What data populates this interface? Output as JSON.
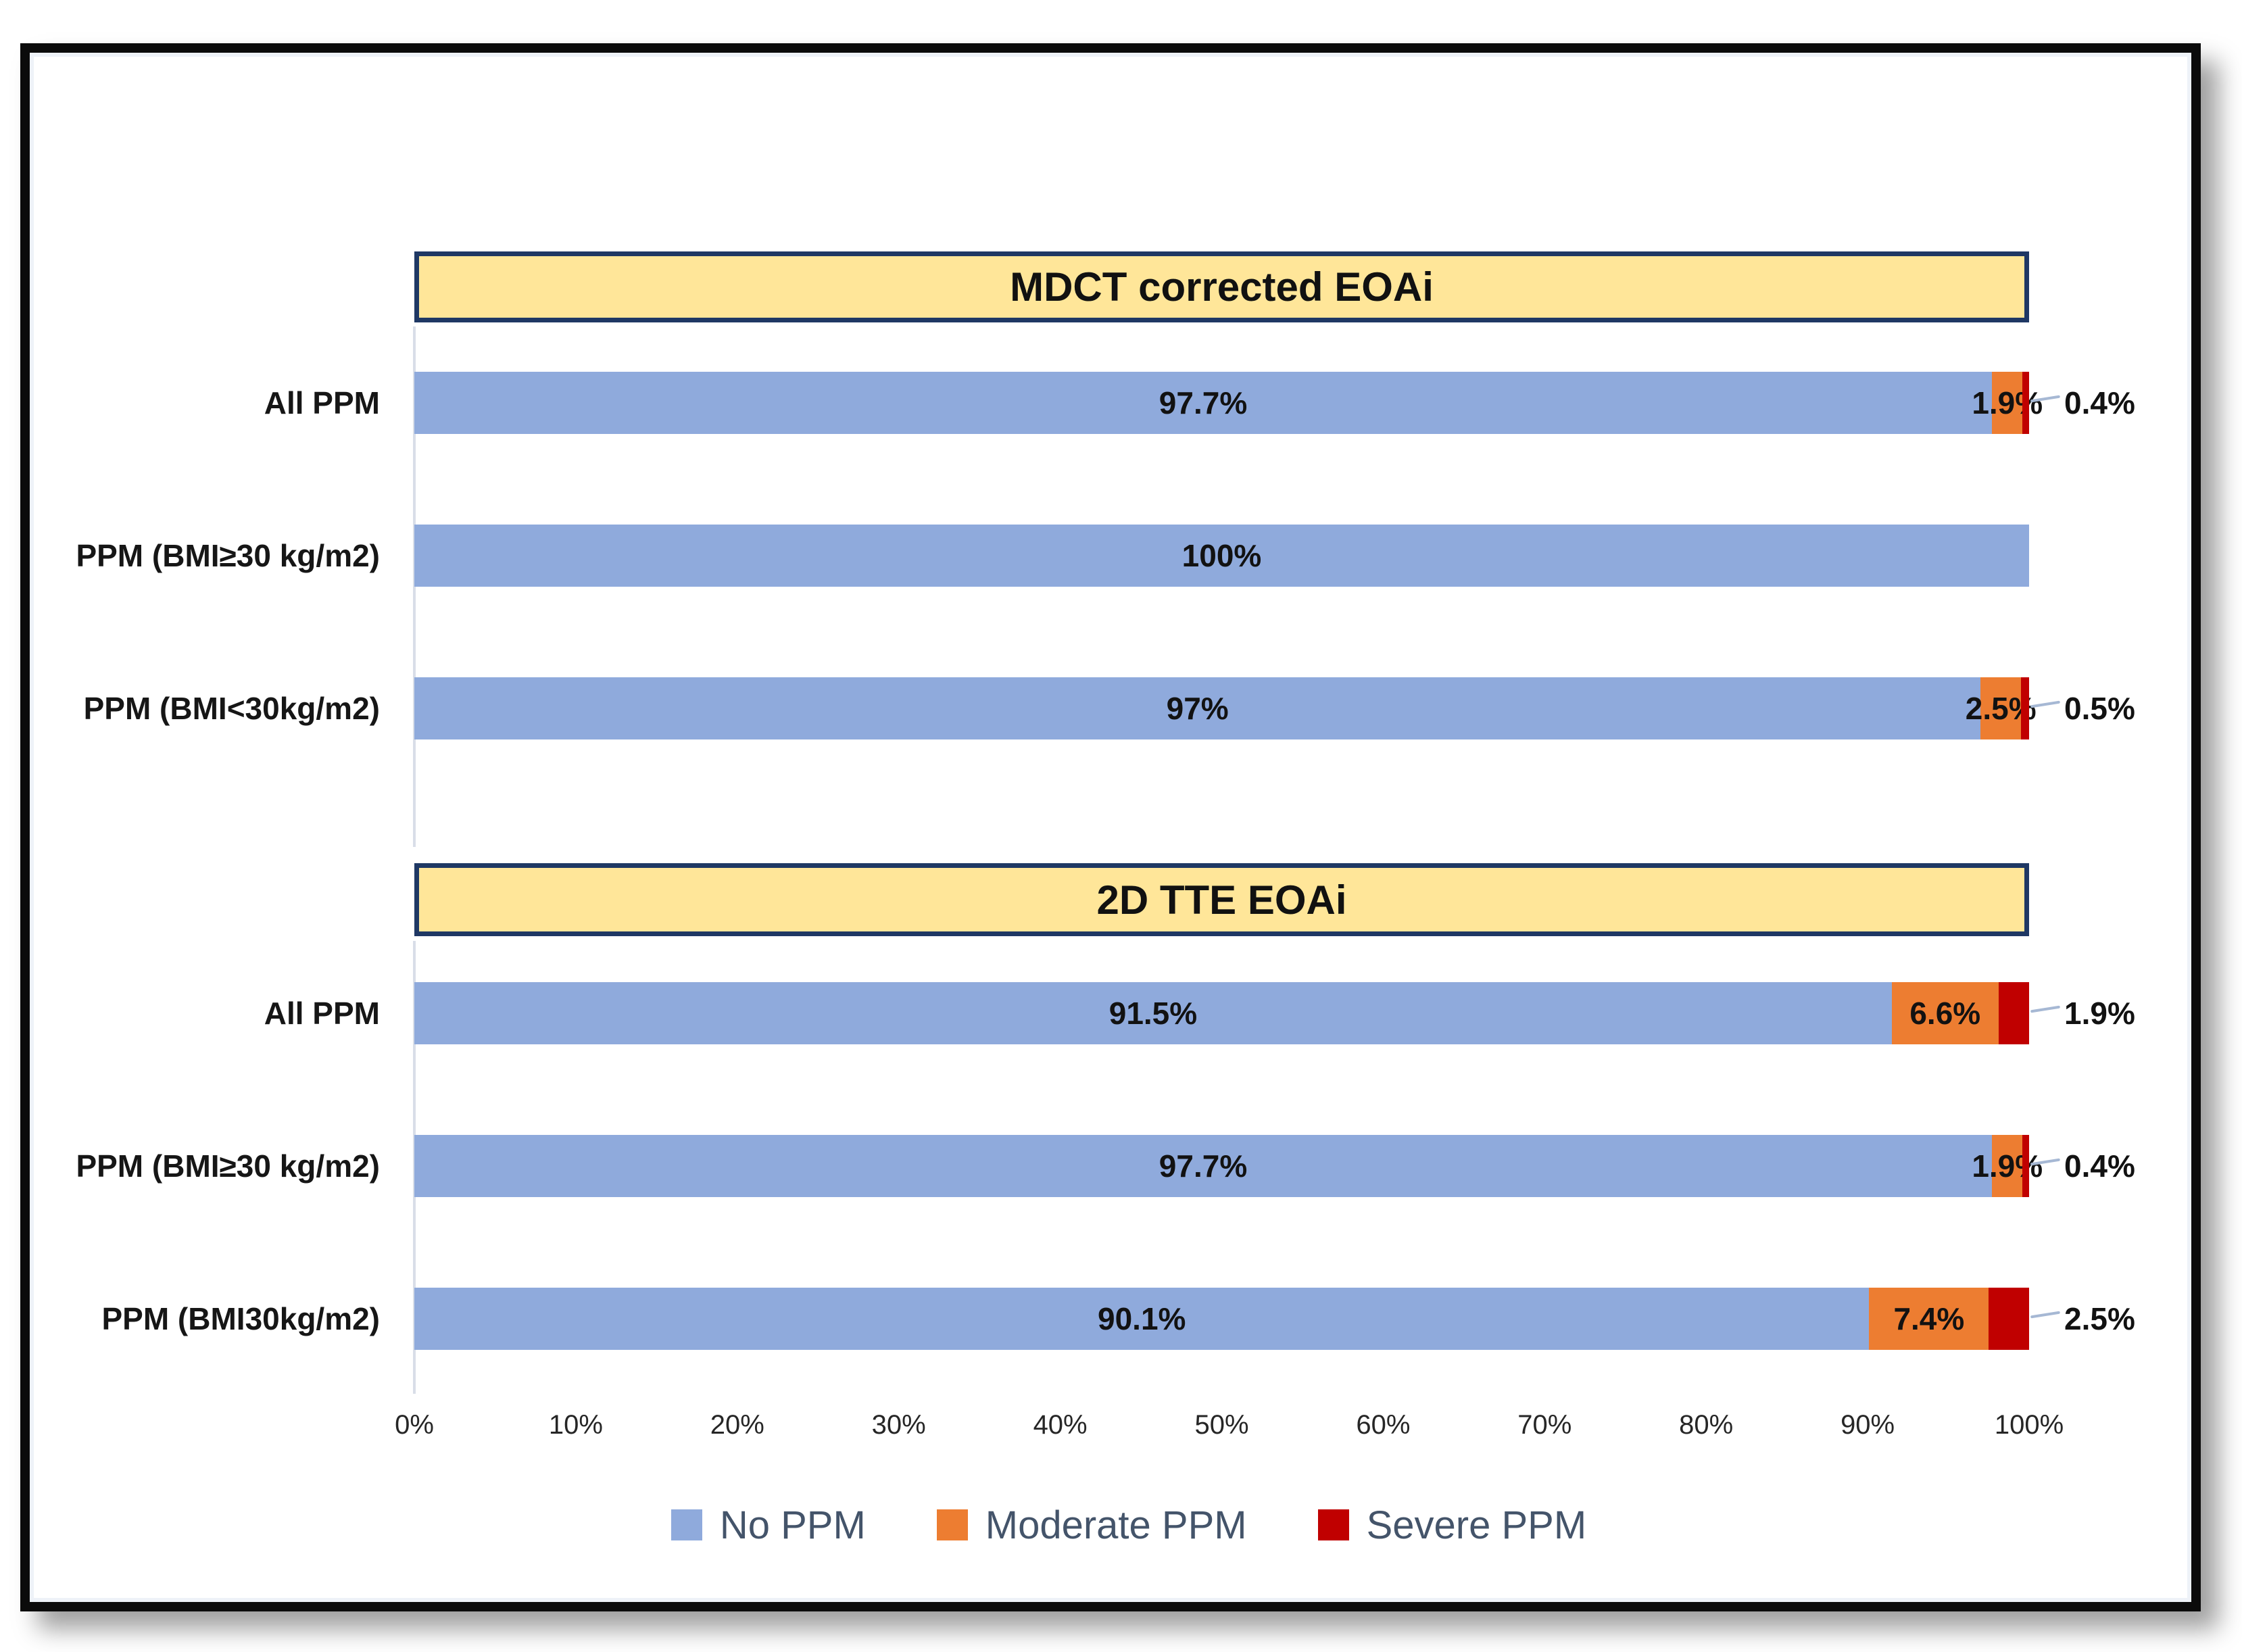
{
  "chart_data": [
    {
      "type": "bar",
      "orientation": "horizontal",
      "stacked": true,
      "title": "MDCT corrected EOAi",
      "categories": [
        "All PPM",
        "PPM (BMI≥30 kg/m2)",
        "PPM (BMI<30kg/m2)"
      ],
      "series": [
        {
          "name": "No PPM",
          "color": "#8FAADC",
          "values": [
            97.7,
            100,
            97
          ],
          "labels": [
            "97.7%",
            "100%",
            "97%"
          ]
        },
        {
          "name": "Moderate PPM",
          "color": "#ED7D31",
          "values": [
            1.9,
            0,
            2.5
          ],
          "labels": [
            "1.9%",
            "",
            "2.5%"
          ]
        },
        {
          "name": "Severe PPM",
          "color": "#C00000",
          "values": [
            0.4,
            0,
            0.5
          ],
          "labels": [
            "0.4%",
            "",
            "0.5%"
          ],
          "labels_outside": true
        }
      ],
      "xlim": [
        0,
        100
      ],
      "grid": false,
      "title_fill": "#FFE699",
      "title_border": "#1F3864"
    },
    {
      "type": "bar",
      "orientation": "horizontal",
      "stacked": true,
      "title": "2D TTE EOAi",
      "categories": [
        "All PPM",
        "PPM (BMI≥30 kg/m2)",
        "PPM (BMI30kg/m2)"
      ],
      "series": [
        {
          "name": "No PPM",
          "color": "#8FAADC",
          "values": [
            91.5,
            97.7,
            90.1
          ],
          "labels": [
            "91.5%",
            "97.7%",
            "90.1%"
          ]
        },
        {
          "name": "Moderate PPM",
          "color": "#ED7D31",
          "values": [
            6.6,
            1.9,
            7.4
          ],
          "labels": [
            "6.6%",
            "1.9%",
            "7.4%"
          ]
        },
        {
          "name": "Severe PPM",
          "color": "#C00000",
          "values": [
            1.9,
            0.4,
            2.5
          ],
          "labels": [
            "1.9%",
            "0.4%",
            "2.5%"
          ],
          "labels_outside": true
        }
      ],
      "xlim": [
        0,
        100
      ],
      "grid": false,
      "title_fill": "#FFE699",
      "title_border": "#1F3864"
    }
  ],
  "axis": {
    "tick_labels": [
      "0%",
      "10%",
      "20%",
      "30%",
      "40%",
      "50%",
      "60%",
      "70%",
      "80%",
      "90%",
      "100%"
    ]
  },
  "legend": {
    "position": "bottom",
    "items": [
      {
        "label": "No PPM",
        "color": "#8FAADC"
      },
      {
        "label": "Moderate PPM",
        "color": "#ED7D31"
      },
      {
        "label": "Severe PPM",
        "color": "#C00000"
      }
    ]
  },
  "ui_colors": {
    "leader_line": "#A6B8D4",
    "axis_line": "#D9DEE8",
    "legend_text": "#44546A",
    "frame_border": "#0B0B0B",
    "background": "#FFFFFF"
  }
}
